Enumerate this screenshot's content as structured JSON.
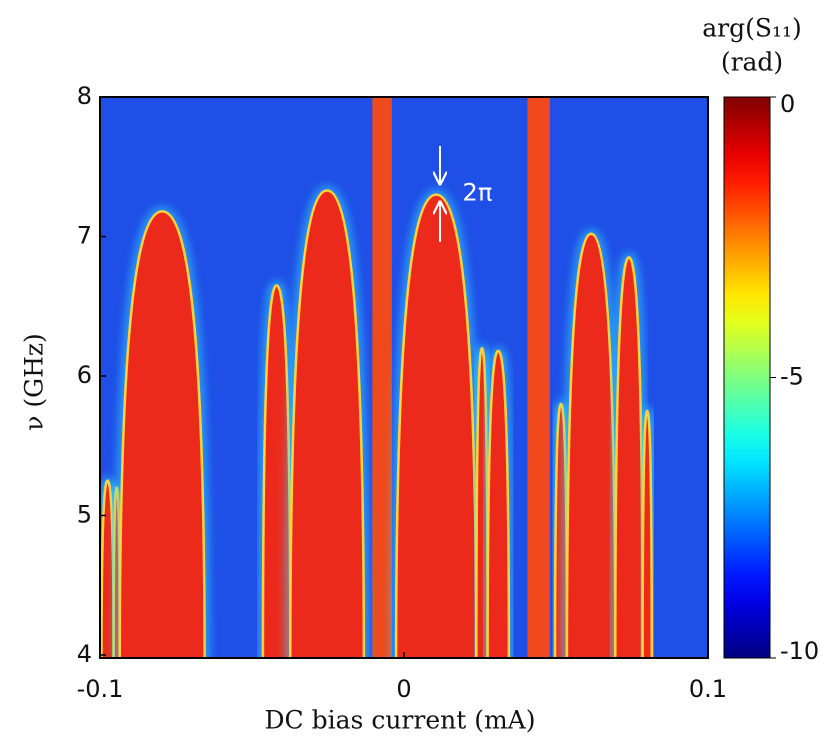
{
  "chart_data": {
    "type": "heatmap",
    "xlabel": "DC bias current (mA)",
    "ylabel": "ν (GHz)",
    "xlim": [
      -0.1,
      0.1
    ],
    "ylim": [
      4,
      8
    ],
    "xticks": [
      -0.1,
      0,
      0.1
    ],
    "yticks": [
      4,
      5,
      6,
      7,
      8
    ],
    "background_color": "#1f4fe6",
    "lobe_color": "#ec2a1c",
    "band_color": "#f04a1c",
    "lobes": [
      {
        "x_min": -0.0995,
        "x_max": -0.0955,
        "peak": 5.25
      },
      {
        "x_min": -0.0955,
        "x_max": -0.0935,
        "peak": 5.2
      },
      {
        "x_min": -0.0935,
        "x_max": -0.0656,
        "peak": 7.18
      },
      {
        "x_min": -0.0464,
        "x_max": -0.0374,
        "peak": 6.65
      },
      {
        "x_min": -0.0374,
        "x_max": -0.0132,
        "peak": 7.33
      },
      {
        "x_min": -0.0026,
        "x_max": 0.0238,
        "peak": 7.3
      },
      {
        "x_min": 0.0238,
        "x_max": 0.0275,
        "peak": 6.2
      },
      {
        "x_min": 0.0275,
        "x_max": 0.0345,
        "peak": 6.18
      },
      {
        "x_min": 0.0497,
        "x_max": 0.0536,
        "peak": 5.8
      },
      {
        "x_min": 0.0536,
        "x_max": 0.0695,
        "peak": 7.02
      },
      {
        "x_min": 0.0695,
        "x_max": 0.0785,
        "peak": 6.85
      },
      {
        "x_min": 0.0785,
        "x_max": 0.0815,
        "peak": 5.75
      }
    ],
    "bands": [
      {
        "x_min": -0.0104,
        "x_max": -0.004
      },
      {
        "x_min": 0.0406,
        "x_max": 0.048
      }
    ],
    "annotation": {
      "text": "2π",
      "x": 0.014,
      "y": 7.35
    },
    "colorbar": {
      "title": "arg(S₁₁)",
      "unit": "(rad)",
      "clim": [
        -10,
        0
      ],
      "ticks": [
        0,
        -5,
        -10
      ],
      "colormap": "jet"
    }
  }
}
